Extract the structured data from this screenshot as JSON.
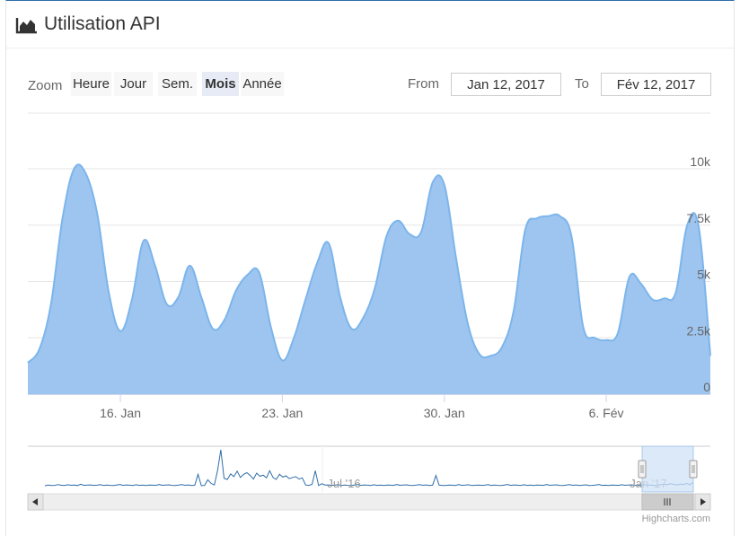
{
  "header": {
    "icon": "area-chart-icon",
    "title": "Utilisation API"
  },
  "range_selector": {
    "zoom_label": "Zoom",
    "buttons": [
      {
        "label": "Heure",
        "selected": false
      },
      {
        "label": "Jour",
        "selected": false
      },
      {
        "label": "Sem.",
        "selected": false
      },
      {
        "label": "Mois",
        "selected": true
      },
      {
        "label": "Année",
        "selected": false
      }
    ],
    "from_label": "From",
    "from_value": "Jan 12, 2017",
    "to_label": "To",
    "to_value": "Fév 12, 2017"
  },
  "credits": "Highcharts.com",
  "colors": {
    "area_fill": "#9ec5ef",
    "area_line": "#7cb5ec",
    "navigator_line": "#2f6da8",
    "navigator_mask": "#cfe2f7",
    "selected_button_bg": "#e6ebf5",
    "button_bg": "#f7f7f7"
  },
  "chart_data": {
    "type": "area",
    "series": [
      {
        "points": [
          [
            "2017-01-12 00:00",
            1400
          ],
          [
            "2017-01-12 12:00",
            2000
          ],
          [
            "2017-01-13 00:00",
            4000
          ],
          [
            "2017-01-13 12:00",
            7800
          ],
          [
            "2017-01-14 00:00",
            10000
          ],
          [
            "2017-01-14 12:00",
            9800
          ],
          [
            "2017-01-15 00:00",
            8000
          ],
          [
            "2017-01-15 12:00",
            4500
          ],
          [
            "2017-01-16 00:00",
            2800
          ],
          [
            "2017-01-16 12:00",
            4200
          ],
          [
            "2017-01-17 00:00",
            6800
          ],
          [
            "2017-01-17 12:00",
            5700
          ],
          [
            "2017-01-18 00:00",
            4000
          ],
          [
            "2017-01-18 12:00",
            4300
          ],
          [
            "2017-01-19 00:00",
            5700
          ],
          [
            "2017-01-19 12:00",
            4300
          ],
          [
            "2017-01-20 00:00",
            2900
          ],
          [
            "2017-01-20 12:00",
            3300
          ],
          [
            "2017-01-21 00:00",
            4600
          ],
          [
            "2017-01-21 12:00",
            5300
          ],
          [
            "2017-01-22 00:00",
            5400
          ],
          [
            "2017-01-22 12:00",
            3000
          ],
          [
            "2017-01-23 00:00",
            1500
          ],
          [
            "2017-01-23 12:00",
            2500
          ],
          [
            "2017-01-24 00:00",
            4200
          ],
          [
            "2017-01-24 12:00",
            5800
          ],
          [
            "2017-01-25 00:00",
            6700
          ],
          [
            "2017-01-25 12:00",
            4300
          ],
          [
            "2017-01-26 00:00",
            2900
          ],
          [
            "2017-01-26 12:00",
            3400
          ],
          [
            "2017-01-27 00:00",
            4700
          ],
          [
            "2017-01-27 12:00",
            7000
          ],
          [
            "2017-01-28 00:00",
            7700
          ],
          [
            "2017-01-28 12:00",
            7100
          ],
          [
            "2017-01-29 00:00",
            7200
          ],
          [
            "2017-01-29 12:00",
            9400
          ],
          [
            "2017-01-30 00:00",
            9300
          ],
          [
            "2017-01-30 12:00",
            6100
          ],
          [
            "2017-01-31 00:00",
            3200
          ],
          [
            "2017-01-31 12:00",
            1800
          ],
          [
            "2017-02-01 00:00",
            1700
          ],
          [
            "2017-02-01 12:00",
            2100
          ],
          [
            "2017-02-02 00:00",
            3700
          ],
          [
            "2017-02-02 12:00",
            7300
          ],
          [
            "2017-02-03 00:00",
            7800
          ],
          [
            "2017-02-03 12:00",
            7900
          ],
          [
            "2017-02-04 00:00",
            7900
          ],
          [
            "2017-02-04 12:00",
            7000
          ],
          [
            "2017-02-05 00:00",
            3000
          ],
          [
            "2017-02-05 12:00",
            2500
          ],
          [
            "2017-02-06 00:00",
            2400
          ],
          [
            "2017-02-06 12:00",
            2700
          ],
          [
            "2017-02-07 00:00",
            5200
          ],
          [
            "2017-02-07 12:00",
            4900
          ],
          [
            "2017-02-08 00:00",
            4200
          ],
          [
            "2017-02-08 12:00",
            4250
          ],
          [
            "2017-02-09 00:00",
            4500
          ],
          [
            "2017-02-09 12:00",
            7500
          ],
          [
            "2017-02-10 00:00",
            7400
          ],
          [
            "2017-02-10 12:00",
            1700
          ]
        ]
      }
    ],
    "x_range": [
      "2017-01-12 00:00",
      "2017-02-10 12:00"
    ],
    "x_ticks": [
      {
        "x": "2017-01-16 00:00",
        "label": "16. Jan"
      },
      {
        "x": "2017-01-23 00:00",
        "label": "23. Jan"
      },
      {
        "x": "2017-01-30 00:00",
        "label": "30. Jan"
      },
      {
        "x": "2017-02-06 00:00",
        "label": "6. Fév"
      }
    ],
    "y_range": [
      0,
      11000
    ],
    "y_ticks": [
      {
        "value": 0,
        "label": "0"
      },
      {
        "value": 2500,
        "label": "2.5k"
      },
      {
        "value": 5000,
        "label": "5k"
      },
      {
        "value": 7500,
        "label": "7.5k"
      },
      {
        "value": 10000,
        "label": "10k"
      }
    ],
    "grid": true,
    "legend": false,
    "navigator": {
      "labels": [
        "Jul '16",
        "Jan '17"
      ],
      "series": [
        90,
        110,
        95,
        100,
        120,
        105,
        98,
        115,
        102,
        110,
        96,
        130,
        100,
        108,
        112,
        99,
        104,
        118,
        97,
        106,
        101,
        95,
        109,
        123,
        100,
        112,
        105,
        98,
        115,
        101,
        107,
        96,
        110,
        104,
        99,
        121,
        103,
        108,
        114,
        100,
        97,
        106,
        119,
        102,
        111,
        98,
        104,
        380,
        92,
        100,
        240,
        150,
        110,
        480,
        1000,
        280,
        250,
        390,
        320,
        460,
        300,
        380,
        420,
        350,
        260,
        410,
        330,
        360,
        290,
        470,
        300,
        250,
        380,
        310,
        340,
        270,
        300,
        320,
        260,
        290,
        110,
        100,
        125,
        470,
        96,
        140,
        108,
        112,
        99,
        104,
        118,
        97,
        106,
        101,
        95,
        109,
        123,
        100,
        112,
        105,
        98,
        115,
        101,
        107,
        96,
        110,
        104,
        99,
        121,
        103,
        108,
        114,
        100,
        97,
        106,
        119,
        102,
        111,
        98,
        104,
        350,
        105,
        100,
        95,
        110,
        104,
        98,
        120,
        101,
        107,
        115,
        96,
        103,
        110,
        99,
        104,
        118,
        97,
        106,
        101,
        95,
        109,
        123,
        100,
        112,
        105,
        98,
        115,
        101,
        107,
        96,
        110,
        104,
        99,
        121,
        103,
        108,
        114,
        100,
        97,
        106,
        119,
        102,
        111,
        98,
        104,
        113,
        96,
        101,
        109,
        122,
        100,
        105,
        98,
        110,
        104,
        99,
        117,
        103,
        108,
        114,
        100,
        97,
        106,
        119,
        102,
        111,
        98,
        104,
        120,
        130,
        115,
        140,
        125,
        110,
        135,
        120,
        150,
        118,
        180
      ]
    }
  }
}
